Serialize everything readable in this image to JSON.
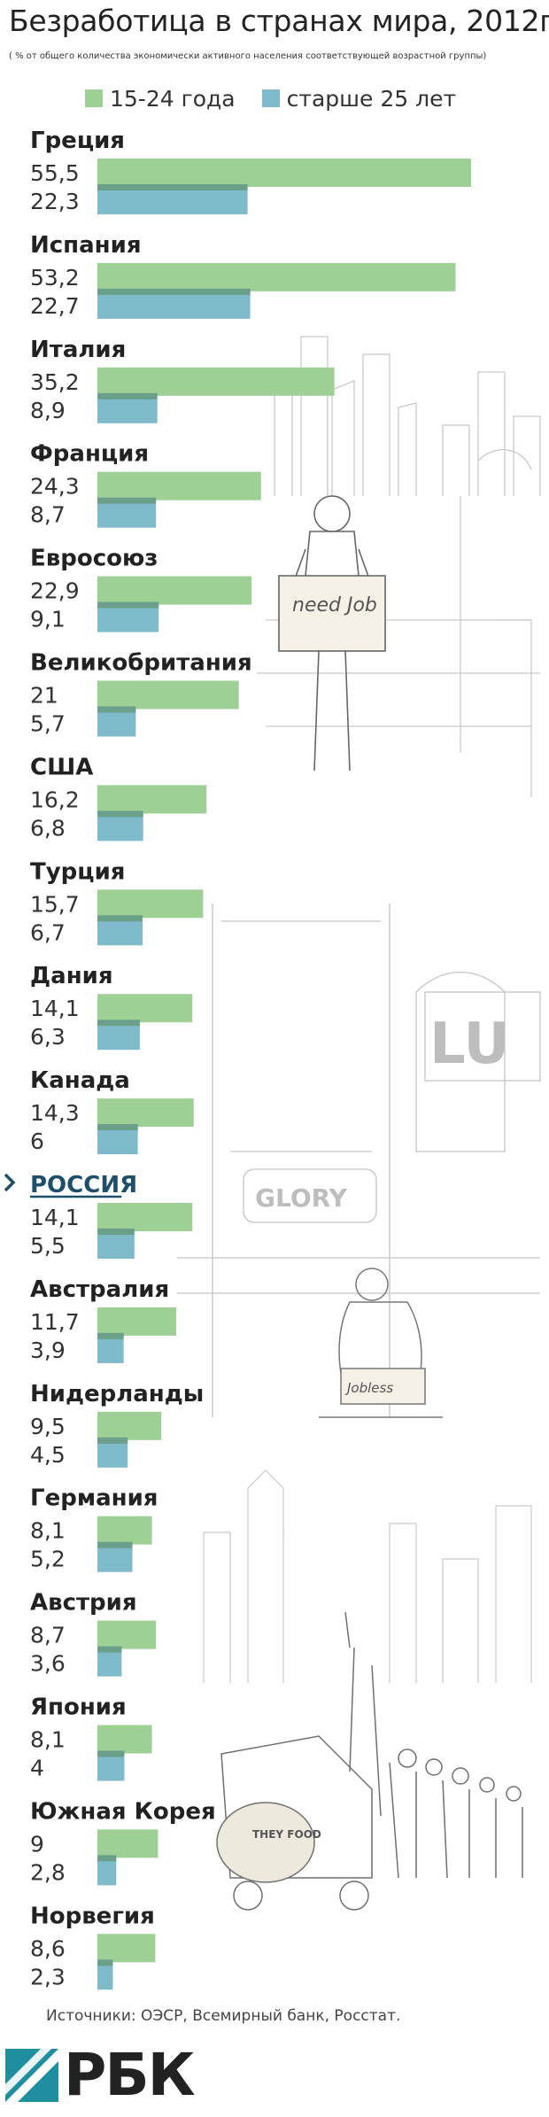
{
  "title": "Безработица в странах мира, 2012г.",
  "subtitle": "( % от общего количества экономически активного населения соответствующей возрастной группы)",
  "legend": [
    {
      "label": "15-24 года",
      "color": "#9ecf95"
    },
    {
      "label": "старше 25 лет",
      "color": "#7fbacb"
    }
  ],
  "colors": {
    "young": "#9ecf95",
    "older": "#7fbacb",
    "overlap": "#6a9f8a",
    "highlight": "#1d4f6b"
  },
  "chart_data": {
    "type": "bar",
    "orientation": "horizontal",
    "categories": [
      "Греция",
      "Испания",
      "Италия",
      "Франция",
      "Евросоюз",
      "Великобритания",
      "США",
      "Турция",
      "Дания",
      "Канада",
      "РОССИЯ",
      "Австралия",
      "Нидерланды",
      "Германия",
      "Австрия",
      "Япония",
      "Южная Корея",
      "Норвегия"
    ],
    "series": [
      {
        "name": "15-24 года",
        "values": [
          55.5,
          53.2,
          35.2,
          24.3,
          22.9,
          21,
          16.2,
          15.7,
          14.1,
          14.3,
          14.1,
          11.7,
          9.5,
          8.1,
          8.7,
          8.1,
          9,
          8.6
        ],
        "labels": [
          "55,5",
          "53,2",
          "35,2",
          "24,3",
          "22,9",
          "21",
          "16,2",
          "15,7",
          "14,1",
          "14,3",
          "14,1",
          "11,7",
          "9,5",
          "8,1",
          "8,7",
          "8,1",
          "9",
          "8,6"
        ]
      },
      {
        "name": "старше 25 лет",
        "values": [
          22.3,
          22.7,
          8.9,
          8.7,
          9.1,
          5.7,
          6.8,
          6.7,
          6.3,
          6,
          5.5,
          3.9,
          4.5,
          5.2,
          3.6,
          4,
          2.8,
          2.3
        ],
        "labels": [
          "22,3",
          "22,7",
          "8,9",
          "8,7",
          "9,1",
          "5,7",
          "6,8",
          "6,7",
          "6,3",
          "6",
          "5,5",
          "3,9",
          "4,5",
          "5,2",
          "3,6",
          "4",
          "2,8",
          "2,3"
        ]
      }
    ],
    "highlight": "РОССИЯ",
    "xlim": [
      0,
      55.5
    ],
    "grid": false,
    "legend_position": "top-left"
  },
  "sketch_labels": [
    "need Job",
    "GLORY",
    "Jobless",
    "LU",
    "THEY FOOD"
  ],
  "source": "Источники: ОЭСР, Всемирный банк, Росстат.",
  "logo": {
    "text": "РБК",
    "color": "#1f8fa0"
  }
}
